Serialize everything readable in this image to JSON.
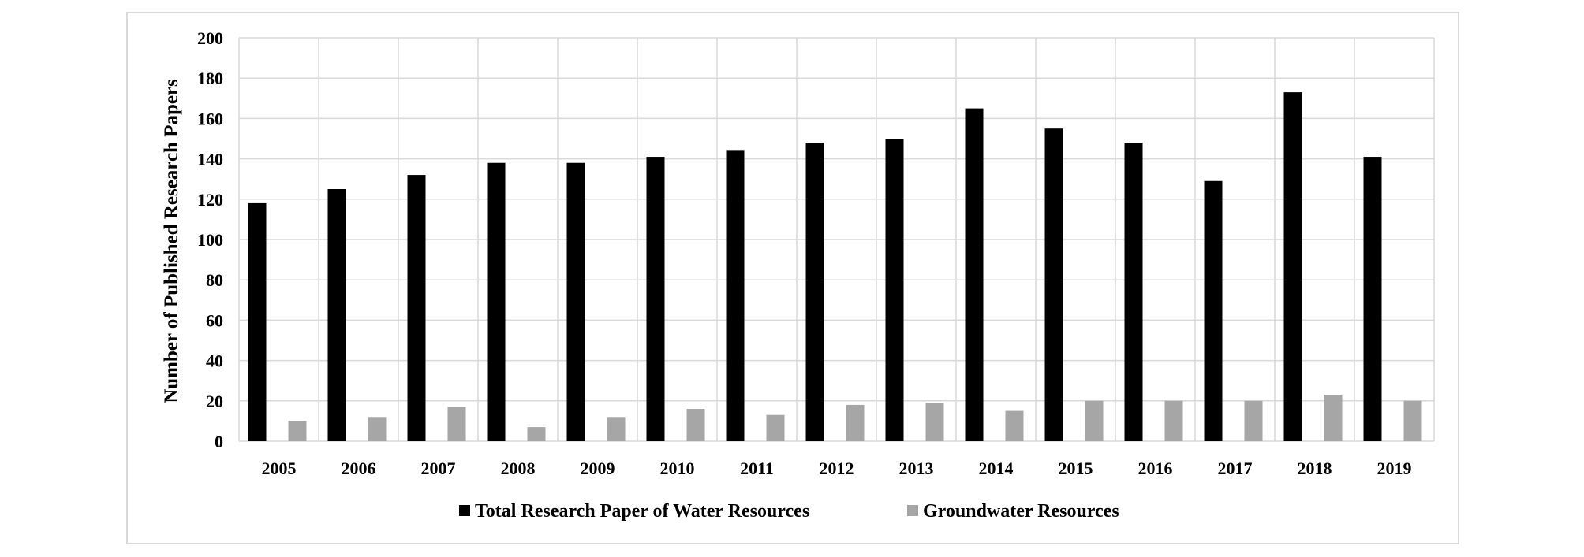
{
  "chart_data": {
    "type": "bar",
    "title": "",
    "xlabel": "",
    "ylabel": "Number  of Published Research Papers",
    "ylim": [
      0,
      200
    ],
    "yticks": [
      0,
      20,
      40,
      60,
      80,
      100,
      120,
      140,
      160,
      180,
      200
    ],
    "grid": true,
    "legend_position": "bottom",
    "categories": [
      "2005",
      "2006",
      "2007",
      "2008",
      "2009",
      "2010",
      "2011",
      "2012",
      "2013",
      "2014",
      "2015",
      "2016",
      "2017",
      "2018",
      "2019"
    ],
    "series": [
      {
        "name": "Total Research Paper of Water Resources",
        "color": "#000000",
        "values": [
          118,
          125,
          132,
          138,
          138,
          141,
          144,
          148,
          150,
          165,
          155,
          148,
          129,
          173,
          141
        ]
      },
      {
        "name": "Groundwater Resources",
        "color": "#a6a6a6",
        "values": [
          10,
          12,
          17,
          7,
          12,
          16,
          13,
          18,
          19,
          15,
          20,
          20,
          20,
          23,
          20
        ]
      }
    ]
  }
}
